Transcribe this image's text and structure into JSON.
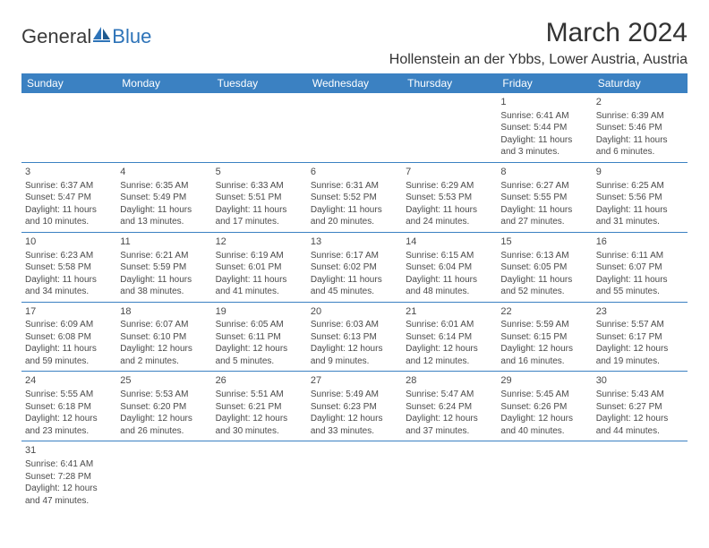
{
  "colors": {
    "header_bg": "#3b81c2",
    "header_text": "#ffffff",
    "border": "#3b81c2",
    "text": "#4a4a4a",
    "logo_blue": "#2d73b8"
  },
  "logo": {
    "general": "General",
    "blue": "Blue"
  },
  "title": "March 2024",
  "location": "Hollenstein an der Ybbs, Lower Austria, Austria",
  "day_headers": [
    "Sunday",
    "Monday",
    "Tuesday",
    "Wednesday",
    "Thursday",
    "Friday",
    "Saturday"
  ],
  "weeks": [
    [
      null,
      null,
      null,
      null,
      null,
      {
        "n": "1",
        "sr": "Sunrise: 6:41 AM",
        "ss": "Sunset: 5:44 PM",
        "dl": "Daylight: 11 hours and 3 minutes."
      },
      {
        "n": "2",
        "sr": "Sunrise: 6:39 AM",
        "ss": "Sunset: 5:46 PM",
        "dl": "Daylight: 11 hours and 6 minutes."
      }
    ],
    [
      {
        "n": "3",
        "sr": "Sunrise: 6:37 AM",
        "ss": "Sunset: 5:47 PM",
        "dl": "Daylight: 11 hours and 10 minutes."
      },
      {
        "n": "4",
        "sr": "Sunrise: 6:35 AM",
        "ss": "Sunset: 5:49 PM",
        "dl": "Daylight: 11 hours and 13 minutes."
      },
      {
        "n": "5",
        "sr": "Sunrise: 6:33 AM",
        "ss": "Sunset: 5:51 PM",
        "dl": "Daylight: 11 hours and 17 minutes."
      },
      {
        "n": "6",
        "sr": "Sunrise: 6:31 AM",
        "ss": "Sunset: 5:52 PM",
        "dl": "Daylight: 11 hours and 20 minutes."
      },
      {
        "n": "7",
        "sr": "Sunrise: 6:29 AM",
        "ss": "Sunset: 5:53 PM",
        "dl": "Daylight: 11 hours and 24 minutes."
      },
      {
        "n": "8",
        "sr": "Sunrise: 6:27 AM",
        "ss": "Sunset: 5:55 PM",
        "dl": "Daylight: 11 hours and 27 minutes."
      },
      {
        "n": "9",
        "sr": "Sunrise: 6:25 AM",
        "ss": "Sunset: 5:56 PM",
        "dl": "Daylight: 11 hours and 31 minutes."
      }
    ],
    [
      {
        "n": "10",
        "sr": "Sunrise: 6:23 AM",
        "ss": "Sunset: 5:58 PM",
        "dl": "Daylight: 11 hours and 34 minutes."
      },
      {
        "n": "11",
        "sr": "Sunrise: 6:21 AM",
        "ss": "Sunset: 5:59 PM",
        "dl": "Daylight: 11 hours and 38 minutes."
      },
      {
        "n": "12",
        "sr": "Sunrise: 6:19 AM",
        "ss": "Sunset: 6:01 PM",
        "dl": "Daylight: 11 hours and 41 minutes."
      },
      {
        "n": "13",
        "sr": "Sunrise: 6:17 AM",
        "ss": "Sunset: 6:02 PM",
        "dl": "Daylight: 11 hours and 45 minutes."
      },
      {
        "n": "14",
        "sr": "Sunrise: 6:15 AM",
        "ss": "Sunset: 6:04 PM",
        "dl": "Daylight: 11 hours and 48 minutes."
      },
      {
        "n": "15",
        "sr": "Sunrise: 6:13 AM",
        "ss": "Sunset: 6:05 PM",
        "dl": "Daylight: 11 hours and 52 minutes."
      },
      {
        "n": "16",
        "sr": "Sunrise: 6:11 AM",
        "ss": "Sunset: 6:07 PM",
        "dl": "Daylight: 11 hours and 55 minutes."
      }
    ],
    [
      {
        "n": "17",
        "sr": "Sunrise: 6:09 AM",
        "ss": "Sunset: 6:08 PM",
        "dl": "Daylight: 11 hours and 59 minutes."
      },
      {
        "n": "18",
        "sr": "Sunrise: 6:07 AM",
        "ss": "Sunset: 6:10 PM",
        "dl": "Daylight: 12 hours and 2 minutes."
      },
      {
        "n": "19",
        "sr": "Sunrise: 6:05 AM",
        "ss": "Sunset: 6:11 PM",
        "dl": "Daylight: 12 hours and 5 minutes."
      },
      {
        "n": "20",
        "sr": "Sunrise: 6:03 AM",
        "ss": "Sunset: 6:13 PM",
        "dl": "Daylight: 12 hours and 9 minutes."
      },
      {
        "n": "21",
        "sr": "Sunrise: 6:01 AM",
        "ss": "Sunset: 6:14 PM",
        "dl": "Daylight: 12 hours and 12 minutes."
      },
      {
        "n": "22",
        "sr": "Sunrise: 5:59 AM",
        "ss": "Sunset: 6:15 PM",
        "dl": "Daylight: 12 hours and 16 minutes."
      },
      {
        "n": "23",
        "sr": "Sunrise: 5:57 AM",
        "ss": "Sunset: 6:17 PM",
        "dl": "Daylight: 12 hours and 19 minutes."
      }
    ],
    [
      {
        "n": "24",
        "sr": "Sunrise: 5:55 AM",
        "ss": "Sunset: 6:18 PM",
        "dl": "Daylight: 12 hours and 23 minutes."
      },
      {
        "n": "25",
        "sr": "Sunrise: 5:53 AM",
        "ss": "Sunset: 6:20 PM",
        "dl": "Daylight: 12 hours and 26 minutes."
      },
      {
        "n": "26",
        "sr": "Sunrise: 5:51 AM",
        "ss": "Sunset: 6:21 PM",
        "dl": "Daylight: 12 hours and 30 minutes."
      },
      {
        "n": "27",
        "sr": "Sunrise: 5:49 AM",
        "ss": "Sunset: 6:23 PM",
        "dl": "Daylight: 12 hours and 33 minutes."
      },
      {
        "n": "28",
        "sr": "Sunrise: 5:47 AM",
        "ss": "Sunset: 6:24 PM",
        "dl": "Daylight: 12 hours and 37 minutes."
      },
      {
        "n": "29",
        "sr": "Sunrise: 5:45 AM",
        "ss": "Sunset: 6:26 PM",
        "dl": "Daylight: 12 hours and 40 minutes."
      },
      {
        "n": "30",
        "sr": "Sunrise: 5:43 AM",
        "ss": "Sunset: 6:27 PM",
        "dl": "Daylight: 12 hours and 44 minutes."
      }
    ],
    [
      {
        "n": "31",
        "sr": "Sunrise: 6:41 AM",
        "ss": "Sunset: 7:28 PM",
        "dl": "Daylight: 12 hours and 47 minutes."
      },
      null,
      null,
      null,
      null,
      null,
      null
    ]
  ]
}
